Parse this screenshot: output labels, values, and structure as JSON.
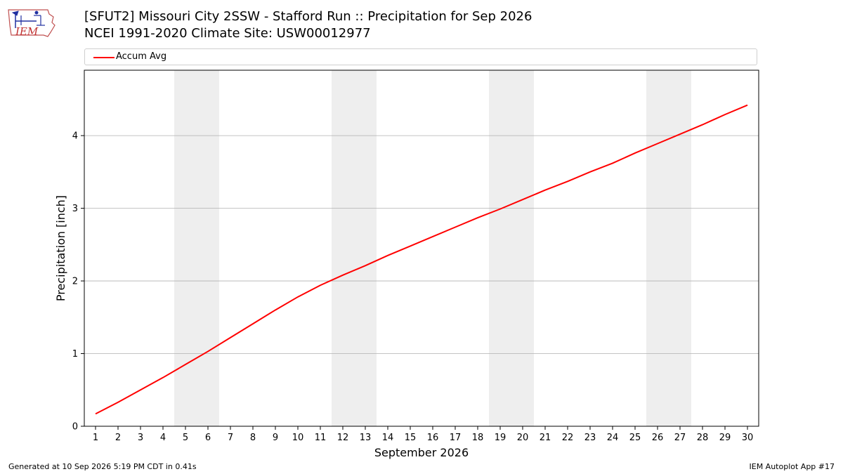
{
  "header": {
    "logo_text": "IEM",
    "title_line1": "[SFUT2] Missouri City 2SSW - Stafford Run :: Precipitation for Sep 2026",
    "title_line2": "NCEI 1991-2020 Climate Site: USW00012977"
  },
  "footer": {
    "generated": "Generated at 10 Sep 2026 5:19 PM CDT in 0.41s",
    "app": "IEM Autoplot App #17"
  },
  "colors": {
    "series": "#ff0000",
    "weekend_band": "#eeeeee",
    "grid": "#b0b0b0"
  },
  "chart_data": {
    "type": "line",
    "title": "[SFUT2] Missouri City 2SSW - Stafford Run :: Precipitation for Sep 2026",
    "subtitle": "NCEI 1991-2020 Climate Site: USW00012977",
    "xlabel": "September 2026",
    "ylabel": "Precipitation [inch]",
    "xlim": [
      0.5,
      30.5
    ],
    "ylim": [
      0,
      4.9
    ],
    "x_ticks": [
      "1",
      "2",
      "3",
      "4",
      "5",
      "6",
      "7",
      "8",
      "9",
      "10",
      "11",
      "12",
      "13",
      "14",
      "15",
      "16",
      "17",
      "18",
      "19",
      "20",
      "21",
      "22",
      "23",
      "24",
      "25",
      "26",
      "27",
      "28",
      "29",
      "30"
    ],
    "y_ticks": [
      "0",
      "1",
      "2",
      "3",
      "4"
    ],
    "legend": {
      "placement": "top",
      "entries": [
        "Accum Avg"
      ]
    },
    "grid": "horizontal",
    "weekend_shading": [
      [
        5,
        6
      ],
      [
        12,
        13
      ],
      [
        19,
        20
      ],
      [
        26,
        27
      ]
    ],
    "series": [
      {
        "name": "Accum Avg",
        "x": [
          1,
          2,
          3,
          4,
          5,
          6,
          7,
          8,
          9,
          10,
          11,
          12,
          13,
          14,
          15,
          16,
          17,
          18,
          19,
          20,
          21,
          22,
          23,
          24,
          25,
          26,
          27,
          28,
          29,
          30
        ],
        "values": [
          0.17,
          0.33,
          0.5,
          0.67,
          0.85,
          1.03,
          1.22,
          1.41,
          1.6,
          1.78,
          1.94,
          2.08,
          2.21,
          2.35,
          2.48,
          2.61,
          2.74,
          2.87,
          2.99,
          3.12,
          3.25,
          3.37,
          3.5,
          3.62,
          3.76,
          3.89,
          4.02,
          4.15,
          4.29,
          4.42
        ]
      }
    ]
  }
}
